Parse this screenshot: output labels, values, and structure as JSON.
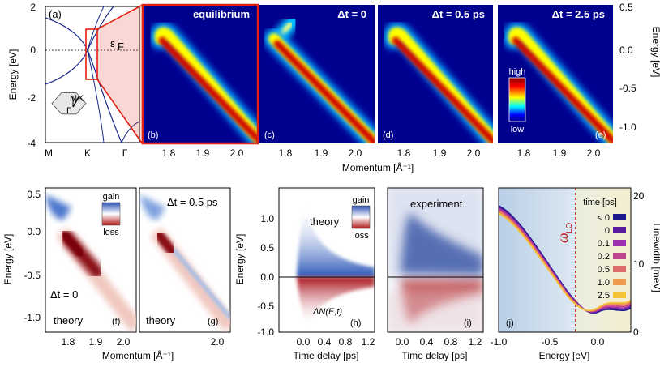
{
  "figure": {
    "panel_a": {
      "letter": "(a)",
      "ylabel": "Energy [eV]",
      "yticks": [
        "2",
        "0",
        "-2",
        "-4"
      ],
      "xticks": [
        "M",
        "K",
        "Γ"
      ],
      "fermi_label": "ε",
      "fermi_sub": "F",
      "inset_labels": [
        "M",
        "K",
        "Γ"
      ]
    },
    "top_panels": [
      {
        "letter": "(b)",
        "title": "equilibrium"
      },
      {
        "letter": "(c)",
        "title": "Δt = 0"
      },
      {
        "letter": "(d)",
        "title": "Δt = 0.5 ps"
      },
      {
        "letter": "(e)",
        "title": "Δt = 2.5 ps"
      }
    ],
    "top_xticks": [
      "1.8",
      "1.9",
      "2.0"
    ],
    "top_xlabel": "Momentum [Å⁻¹]",
    "right_yticks": [
      "0.5",
      "0.0",
      "-0.5",
      "-1.0"
    ],
    "right_ylabel": "Energy [eV]",
    "colorbar_top": {
      "high": "high",
      "low": "low"
    },
    "panel_f": {
      "letter": "(f)",
      "dt": "Δt = 0",
      "theory": "theory"
    },
    "panel_g": {
      "letter": "(g)",
      "dt": "Δt = 0.5 ps",
      "theory": "theory"
    },
    "fg_yticks": [
      "0.5",
      "0.0",
      "-0.5",
      "-1.0"
    ],
    "fg_ylabel": "Energy [eV]",
    "f_xticks": [
      "1.8",
      "1.9",
      "2.0"
    ],
    "g_xticks": [
      "2.0"
    ],
    "fg_xlabel": "Momentum [Å⁻¹]",
    "colorbar_gl": {
      "gain": "gain",
      "loss": "loss"
    },
    "panel_h": {
      "letter": "(h)",
      "theory": "theory",
      "formula": "ΔN(E,t)"
    },
    "panel_i": {
      "letter": "(i)",
      "experiment": "experiment"
    },
    "hi_yticks": [
      "1.0",
      "0.5",
      "0.0",
      "-0.5",
      "-1.0"
    ],
    "hi_ylabel": "Energy [eV]",
    "h_xticks": [
      "0.0",
      "0.4",
      "0.8",
      "1.2"
    ],
    "i_xticks": [
      "0.0",
      "0.4",
      "0.8",
      "1.2"
    ],
    "hi_xlabel": "Time delay [ps]",
    "panel_j": {
      "letter": "(j)",
      "omega": "ω",
      "omega_sub": "LO",
      "xlabel": "Energy [eV]",
      "ylabel": "Linewidth [meV]",
      "xticks": [
        "-1.0",
        "-0.5",
        "0.0"
      ],
      "yticks": [
        "20",
        "10",
        "0"
      ],
      "legend_title": "time [ps]",
      "legend": [
        {
          "label": "< 0",
          "color": "#1a1a8c"
        },
        {
          "label": "0",
          "color": "#5a1a9e"
        },
        {
          "label": "0.1",
          "color": "#9b2fae"
        },
        {
          "label": "0.2",
          "color": "#c2458f"
        },
        {
          "label": "0.5",
          "color": "#de6a6a"
        },
        {
          "label": "1.0",
          "color": "#ee9a4c"
        },
        {
          "label": "2.5",
          "color": "#f5c23a"
        }
      ]
    }
  }
}
